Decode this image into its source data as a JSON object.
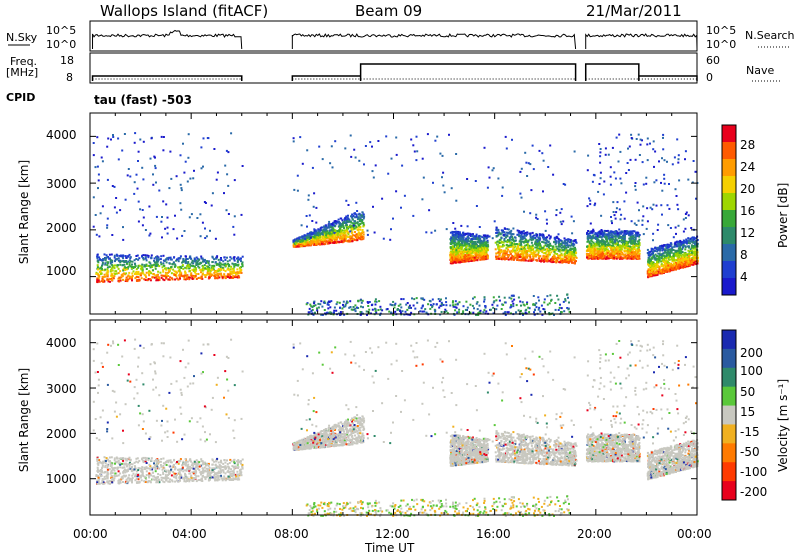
{
  "header": {
    "station": "Wallops Island (fitACF)",
    "beam": "Beam 09",
    "date": "21/Mar/2011"
  },
  "strips": {
    "nsky_label": "N.Sky",
    "nsky_ticks": [
      "10^5",
      "10^0"
    ],
    "nsearch_label": "N.Search",
    "nsearch_ticks": [
      "10^5",
      "10^0"
    ],
    "freq_label": "Freq.",
    "freq_unit": "[MHz]",
    "freq_ticks": [
      "18",
      "8"
    ],
    "nave_label": "Nave",
    "nave_ticks": [
      "60",
      "0"
    ],
    "cpid_label": "CPID",
    "cpid_value": "tau (fast) -503"
  },
  "panels": {
    "power": {
      "ylabel": "Slant Range [km]",
      "colorbar_label": "Power [dB]",
      "colorbar_ticks": [
        "28",
        "24",
        "20",
        "16",
        "12",
        "8",
        "4"
      ],
      "colorbar_colors": [
        "#e8001c",
        "#ff5a00",
        "#ff9c00",
        "#f5d000",
        "#9ed600",
        "#38a838",
        "#2d8a6a",
        "#2a6aa8",
        "#1f3fd0",
        "#1a1acc"
      ]
    },
    "velocity": {
      "ylabel": "Slant Range [km]",
      "colorbar_label": "Velocity [m s⁻¹]",
      "colorbar_ticks": [
        "200",
        "100",
        "50",
        "15",
        "-15",
        "-50",
        "-100",
        "-200"
      ],
      "colorbar_colors": [
        "#1a2ab0",
        "#2a5aa0",
        "#2f8a6a",
        "#5ac83a",
        "#c8c8c0",
        "#f0b020",
        "#ff7a00",
        "#ff3a00",
        "#e8001c"
      ]
    },
    "yticks": [
      "4000",
      "3000",
      "2000",
      "1000"
    ],
    "xticks": [
      "00:00",
      "04:00",
      "08:00",
      "12:00",
      "16:00",
      "20:00",
      "00:00"
    ],
    "xlabel": "Time UT"
  },
  "chart_data": {
    "type": "heatmap",
    "x_range_hours": [
      0,
      24
    ],
    "y_range_km": [
      200,
      4500
    ],
    "data_blocks_hours": [
      [
        0.1,
        6.0
      ],
      [
        8.0,
        19.2
      ],
      [
        19.6,
        24.0
      ]
    ],
    "freq_mhz": [
      [
        0.1,
        6.0,
        10
      ],
      [
        8.0,
        10.7,
        10
      ],
      [
        10.7,
        19.2,
        14.5
      ],
      [
        19.6,
        21.7,
        14.5
      ],
      [
        21.7,
        24.0,
        10
      ]
    ],
    "scatter_regions": [
      {
        "t0": 0.2,
        "t1": 6.0,
        "r_lo": [
          900,
          1000
        ],
        "r_hi": [
          1500,
          1450
        ],
        "type": "ground"
      },
      {
        "t0": 8.0,
        "t1": 10.8,
        "r_lo": [
          1650,
          1800
        ],
        "r_hi": [
          1800,
          2500
        ],
        "type": "band"
      },
      {
        "t0": 14.2,
        "t1": 15.7,
        "r_lo": [
          1300,
          1400
        ],
        "r_hi": [
          2000,
          1900
        ],
        "type": "band"
      },
      {
        "t0": 16.0,
        "t1": 19.2,
        "r_lo": [
          1400,
          1300
        ],
        "r_hi": [
          2100,
          1800
        ],
        "type": "band"
      },
      {
        "t0": 19.6,
        "t1": 21.7,
        "r_lo": [
          1400,
          1400
        ],
        "r_hi": [
          2000,
          2000
        ],
        "type": "band"
      },
      {
        "t0": 22.0,
        "t1": 24.0,
        "r_lo": [
          1000,
          1300
        ],
        "r_hi": [
          1600,
          1900
        ],
        "type": "ground"
      },
      {
        "t0": 8.5,
        "t1": 19.0,
        "r_lo": [
          200,
          200
        ],
        "r_hi": [
          500,
          650
        ],
        "type": "near"
      }
    ]
  }
}
